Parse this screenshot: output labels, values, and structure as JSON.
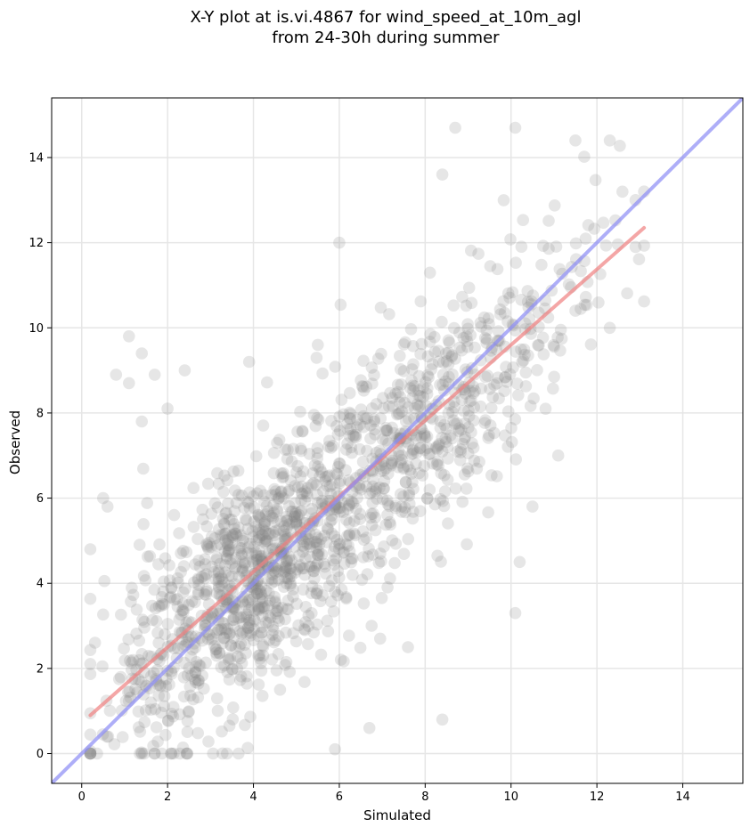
{
  "chart_data": {
    "type": "scatter",
    "title": "X-Y plot at is.vi.4867 for wind_speed_at_10m_agl",
    "subtitle": "from 24-30h during summer",
    "xlabel": "Simulated",
    "ylabel": "Observed",
    "xlim": [
      -0.7,
      15.4
    ],
    "ylim": [
      -0.7,
      15.4
    ],
    "xticks": [
      0,
      2,
      4,
      6,
      8,
      10,
      12,
      14
    ],
    "yticks": [
      0,
      2,
      4,
      6,
      8,
      10,
      12,
      14
    ],
    "grid": true,
    "point_color": "#808080",
    "point_opacity": 0.2,
    "point_count": 1600,
    "points_sample": [
      [
        0.2,
        4.8
      ],
      [
        0.8,
        8.9
      ],
      [
        1.1,
        8.7
      ],
      [
        1.1,
        9.8
      ],
      [
        1.4,
        9.4
      ],
      [
        1.4,
        7.8
      ],
      [
        1.7,
        8.9
      ],
      [
        2.4,
        9.0
      ],
      [
        3.9,
        9.2
      ],
      [
        2.0,
        8.1
      ],
      [
        5.5,
        9.6
      ],
      [
        6.0,
        12.0
      ],
      [
        8.4,
        13.6
      ],
      [
        8.7,
        14.7
      ],
      [
        10.1,
        14.7
      ],
      [
        11.5,
        14.4
      ],
      [
        12.3,
        14.4
      ],
      [
        13.1,
        13.2
      ],
      [
        12.9,
        13.0
      ],
      [
        8.4,
        0.8
      ],
      [
        6.7,
        0.6
      ],
      [
        5.9,
        0.1
      ],
      [
        1.4,
        0.0
      ],
      [
        10.1,
        3.3
      ],
      [
        10.2,
        4.5
      ],
      [
        7.6,
        2.5
      ],
      [
        12.9,
        11.9
      ],
      [
        12.3,
        10.0
      ],
      [
        11.5,
        10.4
      ],
      [
        11.1,
        7.0
      ],
      [
        10.5,
        5.8
      ],
      [
        0.5,
        6.0
      ],
      [
        0.6,
        5.8
      ]
    ],
    "series": [
      {
        "type": "line",
        "color": "#f08080",
        "x": [
          0.2,
          13.1
        ],
        "y": [
          0.9,
          12.35
        ]
      },
      {
        "type": "line",
        "color": "#8c8cf5",
        "x": [
          -0.7,
          15.4
        ],
        "y": [
          -0.7,
          15.4
        ]
      }
    ]
  }
}
